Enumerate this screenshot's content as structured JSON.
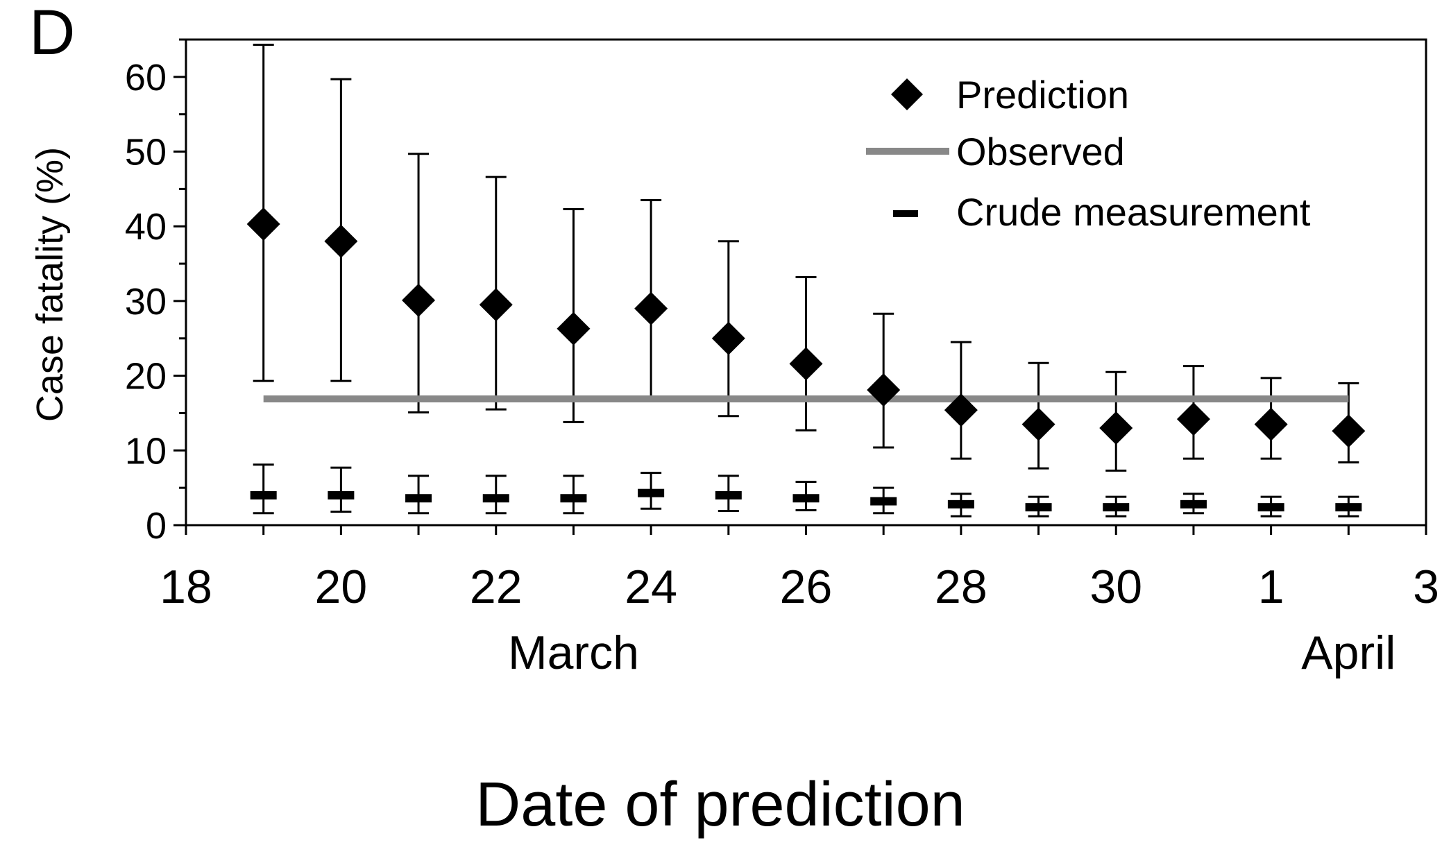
{
  "chart_data": {
    "type": "scatter",
    "panel_label": "D",
    "xlabel": "Date of prediction",
    "ylabel": "Case fatality (%)",
    "ylim": [
      0,
      65
    ],
    "y_ticks": [
      0,
      10,
      20,
      30,
      40,
      50,
      60
    ],
    "x_tick_dates": [
      "2003-03-18",
      "2003-03-20",
      "2003-03-22",
      "2003-03-24",
      "2003-03-26",
      "2003-03-28",
      "2003-03-30",
      "2003-04-01",
      "2003-04-03"
    ],
    "x_tick_labels": [
      "18",
      "20",
      "22",
      "24",
      "26",
      "28",
      "30",
      "1",
      "3"
    ],
    "xlim": [
      "2003-03-18",
      "2003-04-03"
    ],
    "month_labels": [
      {
        "text": "March",
        "date": "2003-03-23"
      },
      {
        "text": "April",
        "date": "2003-04-02"
      }
    ],
    "legend": {
      "placement": "top-right",
      "prediction": "Prediction",
      "observed": "Observed",
      "crude": "Crude measurement"
    },
    "observed": {
      "value": 16.9,
      "from": "2003-03-19",
      "to": "2003-04-02",
      "color": "#888888"
    },
    "prediction": [
      {
        "date": "2003-03-19",
        "value": 40.3,
        "low": 19.3,
        "high": 64.3
      },
      {
        "date": "2003-03-20",
        "value": 38.0,
        "low": 19.3,
        "high": 59.7
      },
      {
        "date": "2003-03-21",
        "value": 30.1,
        "low": 15.1,
        "high": 49.7
      },
      {
        "date": "2003-03-22",
        "value": 29.5,
        "low": 15.5,
        "high": 46.6
      },
      {
        "date": "2003-03-23",
        "value": 26.3,
        "low": 13.8,
        "high": 42.3
      },
      {
        "date": "2003-03-24",
        "value": 29.0,
        "low": 17.0,
        "high": 43.5
      },
      {
        "date": "2003-03-25",
        "value": 25.0,
        "low": 14.6,
        "high": 38.0
      },
      {
        "date": "2003-03-26",
        "value": 21.6,
        "low": 12.7,
        "high": 33.2
      },
      {
        "date": "2003-03-27",
        "value": 18.1,
        "low": 10.4,
        "high": 28.3
      },
      {
        "date": "2003-03-28",
        "value": 15.4,
        "low": 8.9,
        "high": 24.5
      },
      {
        "date": "2003-03-29",
        "value": 13.5,
        "low": 7.6,
        "high": 21.7
      },
      {
        "date": "2003-03-30",
        "value": 13.0,
        "low": 7.3,
        "high": 20.5
      },
      {
        "date": "2003-03-31",
        "value": 14.2,
        "low": 8.9,
        "high": 21.3
      },
      {
        "date": "2003-04-01",
        "value": 13.5,
        "low": 8.9,
        "high": 19.7
      },
      {
        "date": "2003-04-02",
        "value": 12.6,
        "low": 8.4,
        "high": 19.0
      }
    ],
    "crude": [
      {
        "date": "2003-03-19",
        "value": 4.0,
        "low": 1.6,
        "high": 8.1
      },
      {
        "date": "2003-03-20",
        "value": 4.0,
        "low": 1.8,
        "high": 7.7
      },
      {
        "date": "2003-03-21",
        "value": 3.6,
        "low": 1.6,
        "high": 6.6
      },
      {
        "date": "2003-03-22",
        "value": 3.6,
        "low": 1.6,
        "high": 6.6
      },
      {
        "date": "2003-03-23",
        "value": 3.6,
        "low": 1.6,
        "high": 6.6
      },
      {
        "date": "2003-03-24",
        "value": 4.3,
        "low": 2.2,
        "high": 7.0
      },
      {
        "date": "2003-03-25",
        "value": 4.0,
        "low": 1.9,
        "high": 6.6
      },
      {
        "date": "2003-03-26",
        "value": 3.6,
        "low": 2.0,
        "high": 5.8
      },
      {
        "date": "2003-03-27",
        "value": 3.2,
        "low": 1.6,
        "high": 5.0
      },
      {
        "date": "2003-03-28",
        "value": 2.8,
        "low": 1.2,
        "high": 4.2
      },
      {
        "date": "2003-03-29",
        "value": 2.4,
        "low": 1.2,
        "high": 3.8
      },
      {
        "date": "2003-03-30",
        "value": 2.4,
        "low": 1.2,
        "high": 3.8
      },
      {
        "date": "2003-03-31",
        "value": 2.8,
        "low": 1.6,
        "high": 4.2
      },
      {
        "date": "2003-04-01",
        "value": 2.4,
        "low": 1.2,
        "high": 3.8
      },
      {
        "date": "2003-04-02",
        "value": 2.4,
        "low": 1.2,
        "high": 3.8
      }
    ]
  }
}
